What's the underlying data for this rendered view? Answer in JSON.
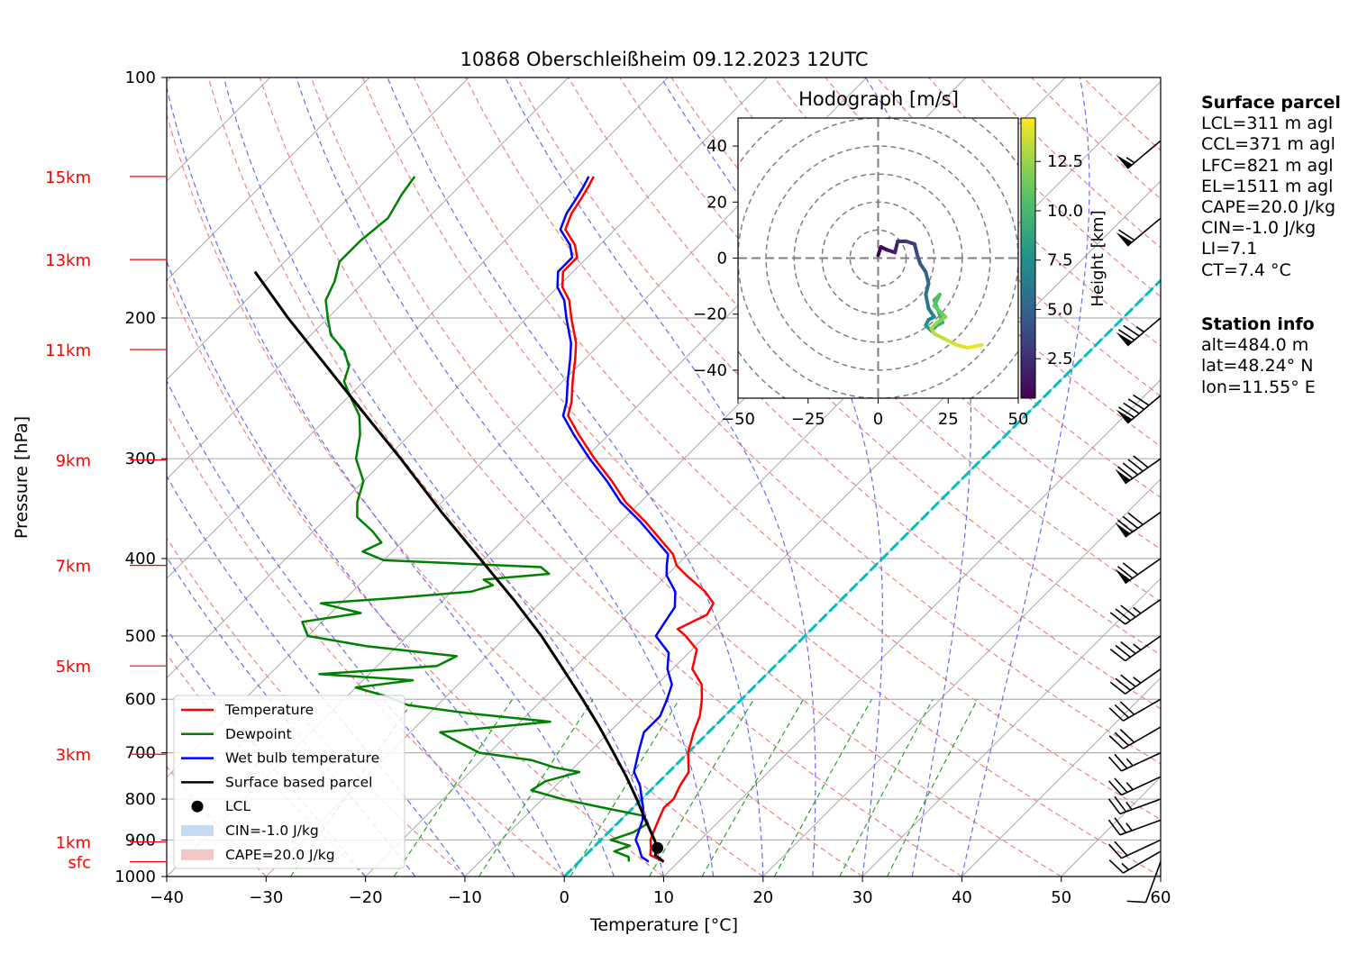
{
  "chart_data": {
    "type": "skew-t",
    "title": "10868 Oberschleißheim 09.12.2023 12UTC",
    "xlabel": "Temperature [°C]",
    "ylabel": "Pressure [hPa]",
    "xlim": [
      -40,
      60
    ],
    "ylim": [
      1000,
      100
    ],
    "y_scale": "log",
    "x_ticks": [
      "−40",
      "−30",
      "−20",
      "−10",
      "0",
      "10",
      "20",
      "30",
      "40",
      "50",
      "60"
    ],
    "y_ticks": [
      "100",
      "200",
      "300",
      "400",
      "500",
      "600",
      "700",
      "800",
      "900",
      "1000"
    ],
    "y_tick_values": [
      100,
      200,
      300,
      400,
      500,
      600,
      700,
      800,
      900,
      1000
    ],
    "height_labels": [
      {
        "label": "15km",
        "p": 133
      },
      {
        "label": "13km",
        "p": 169
      },
      {
        "label": "11km",
        "p": 219
      },
      {
        "label": "9km",
        "p": 301
      },
      {
        "label": "7km",
        "p": 408
      },
      {
        "label": "5km",
        "p": 545
      },
      {
        "label": "3km",
        "p": 703
      },
      {
        "label": "1km",
        "p": 905
      },
      {
        "label": "sfc",
        "p": 958
      }
    ],
    "grid": true,
    "legend_position": "lower-left",
    "legend": [
      {
        "label": "Temperature",
        "kind": "line",
        "color": "#ff0000"
      },
      {
        "label": "Dewpoint",
        "kind": "line",
        "color": "#008000"
      },
      {
        "label": "Wet bulb temperature",
        "kind": "line",
        "color": "#0000ff"
      },
      {
        "label": "Surface based parcel",
        "kind": "line",
        "color": "#000000"
      },
      {
        "label": "LCL",
        "kind": "marker",
        "color": "#000000"
      },
      {
        "label": "CIN=-1.0 J/kg",
        "kind": "patch",
        "color": "#c6dbef"
      },
      {
        "label": "CAPE=20.0 J/kg",
        "kind": "patch",
        "color": "#f4c7c7"
      }
    ],
    "series": [
      {
        "name": "Temperature",
        "color": "#ff0000",
        "points": [
          [
            958,
            8.5
          ],
          [
            940,
            6.5
          ],
          [
            920,
            5.8
          ],
          [
            900,
            5.0
          ],
          [
            880,
            4.5
          ],
          [
            850,
            3.8
          ],
          [
            820,
            3.1
          ],
          [
            800,
            3.2
          ],
          [
            770,
            2.5
          ],
          [
            740,
            2.0
          ],
          [
            700,
            0.0
          ],
          [
            660,
            -1.5
          ],
          [
            630,
            -2.5
          ],
          [
            600,
            -4.0
          ],
          [
            575,
            -5.5
          ],
          [
            550,
            -8.0
          ],
          [
            520,
            -9.5
          ],
          [
            500,
            -12.0
          ],
          [
            490,
            -13.5
          ],
          [
            470,
            -12.0
          ],
          [
            455,
            -12.5
          ],
          [
            440,
            -14.5
          ],
          [
            420,
            -18.0
          ],
          [
            408,
            -20.0
          ],
          [
            395,
            -21.5
          ],
          [
            380,
            -24.0
          ],
          [
            360,
            -27.5
          ],
          [
            340,
            -31.5
          ],
          [
            320,
            -35.0
          ],
          [
            300,
            -39.0
          ],
          [
            280,
            -43.0
          ],
          [
            265,
            -46.0
          ],
          [
            255,
            -47.0
          ],
          [
            240,
            -49.0
          ],
          [
            225,
            -51.0
          ],
          [
            215,
            -52.5
          ],
          [
            200,
            -55.5
          ],
          [
            190,
            -57.5
          ],
          [
            183,
            -59.5
          ],
          [
            175,
            -61.0
          ],
          [
            168,
            -61.0
          ],
          [
            162,
            -62.5
          ],
          [
            155,
            -65.0
          ],
          [
            148,
            -66.0
          ],
          [
            142,
            -66.5
          ],
          [
            137,
            -67.0
          ],
          [
            133,
            -67.5
          ]
        ]
      },
      {
        "name": "Dewpoint",
        "color": "#008000",
        "points": [
          [
            958,
            5.0
          ],
          [
            945,
            4.5
          ],
          [
            930,
            2.5
          ],
          [
            915,
            3.5
          ],
          [
            900,
            1.0
          ],
          [
            880,
            2.5
          ],
          [
            860,
            3.0
          ],
          [
            840,
            2.0
          ],
          [
            820,
            -3.0
          ],
          [
            800,
            -8.0
          ],
          [
            780,
            -12.0
          ],
          [
            760,
            -11.5
          ],
          [
            740,
            -9.0
          ],
          [
            730,
            -12.0
          ],
          [
            715,
            -15.0
          ],
          [
            700,
            -21.0
          ],
          [
            680,
            -24.0
          ],
          [
            660,
            -27.0
          ],
          [
            640,
            -17.0
          ],
          [
            625,
            -26.0
          ],
          [
            610,
            -33.0
          ],
          [
            595,
            -36.0
          ],
          [
            580,
            -40.0
          ],
          [
            568,
            -35.0
          ],
          [
            558,
            -45.0
          ],
          [
            545,
            -34.0
          ],
          [
            530,
            -33.0
          ],
          [
            515,
            -43.0
          ],
          [
            500,
            -50.0
          ],
          [
            480,
            -52.0
          ],
          [
            468,
            -47.0
          ],
          [
            455,
            -52.0
          ],
          [
            448,
            -45.0
          ],
          [
            440,
            -38.0
          ],
          [
            432,
            -36.5
          ],
          [
            425,
            -38.0
          ],
          [
            418,
            -32.0
          ],
          [
            410,
            -33.5
          ],
          [
            402,
            -50.0
          ],
          [
            392,
            -53.0
          ],
          [
            382,
            -52.0
          ],
          [
            370,
            -54.0
          ],
          [
            355,
            -57.0
          ],
          [
            340,
            -58.5
          ],
          [
            320,
            -60.0
          ],
          [
            300,
            -63.0
          ],
          [
            280,
            -65.0
          ],
          [
            265,
            -67.0
          ],
          [
            250,
            -70.0
          ],
          [
            240,
            -72.0
          ],
          [
            230,
            -73.0
          ],
          [
            220,
            -75.0
          ],
          [
            210,
            -78.0
          ],
          [
            200,
            -80.0
          ],
          [
            190,
            -82.0
          ],
          [
            180,
            -83.0
          ],
          [
            170,
            -84.5
          ],
          [
            160,
            -84.5
          ],
          [
            150,
            -84.0
          ],
          [
            140,
            -85.0
          ],
          [
            133,
            -85.5
          ]
        ]
      },
      {
        "name": "Wet bulb temperature",
        "color": "#0000ff",
        "points": [
          [
            958,
            7.0
          ],
          [
            945,
            5.8
          ],
          [
            920,
            4.6
          ],
          [
            900,
            3.5
          ],
          [
            880,
            3.0
          ],
          [
            850,
            2.2
          ],
          [
            820,
            1.0
          ],
          [
            800,
            0.0
          ],
          [
            770,
            -1.5
          ],
          [
            740,
            -3.5
          ],
          [
            700,
            -5.0
          ],
          [
            660,
            -6.5
          ],
          [
            630,
            -6.5
          ],
          [
            600,
            -7.5
          ],
          [
            575,
            -8.5
          ],
          [
            550,
            -10.5
          ],
          [
            525,
            -12.0
          ],
          [
            500,
            -15.0
          ],
          [
            480,
            -15.5
          ],
          [
            460,
            -16.0
          ],
          [
            440,
            -17.5
          ],
          [
            420,
            -20.0
          ],
          [
            408,
            -21.0
          ],
          [
            395,
            -22.0
          ],
          [
            380,
            -24.5
          ],
          [
            360,
            -28.0
          ],
          [
            340,
            -32.0
          ],
          [
            320,
            -35.5
          ],
          [
            300,
            -39.5
          ],
          [
            280,
            -43.5
          ],
          [
            265,
            -46.5
          ],
          [
            255,
            -47.5
          ],
          [
            240,
            -49.5
          ],
          [
            225,
            -51.5
          ],
          [
            215,
            -53.0
          ],
          [
            200,
            -56.0
          ],
          [
            190,
            -58.0
          ],
          [
            183,
            -60.0
          ],
          [
            175,
            -61.5
          ],
          [
            168,
            -61.5
          ],
          [
            162,
            -63.0
          ],
          [
            155,
            -65.5
          ],
          [
            148,
            -66.5
          ],
          [
            142,
            -67.0
          ],
          [
            137,
            -67.5
          ],
          [
            133,
            -68.0
          ]
        ]
      },
      {
        "name": "Surface based parcel",
        "color": "#000000",
        "points": [
          [
            958,
            8.5
          ],
          [
            940,
            7.0
          ],
          [
            921,
            6.5
          ],
          [
            900,
            5.4
          ],
          [
            850,
            2.5
          ],
          [
            800,
            -0.5
          ],
          [
            750,
            -3.8
          ],
          [
            700,
            -7.5
          ],
          [
            650,
            -11.5
          ],
          [
            600,
            -16.0
          ],
          [
            550,
            -21.0
          ],
          [
            500,
            -26.5
          ],
          [
            450,
            -33.0
          ],
          [
            400,
            -40.5
          ],
          [
            350,
            -49.0
          ],
          [
            300,
            -58.5
          ],
          [
            250,
            -70.0
          ],
          [
            200,
            -84.0
          ],
          [
            175,
            -92.0
          ]
        ]
      }
    ],
    "lcl": {
      "p": 921,
      "t": 6.5
    },
    "wind_barbs_kt": [
      {
        "p": 958,
        "speed": 10,
        "dir": 200
      },
      {
        "p": 930,
        "speed": 15,
        "dir": 240
      },
      {
        "p": 900,
        "speed": 20,
        "dir": 245
      },
      {
        "p": 850,
        "speed": 25,
        "dir": 250
      },
      {
        "p": 800,
        "speed": 25,
        "dir": 250
      },
      {
        "p": 750,
        "speed": 25,
        "dir": 245
      },
      {
        "p": 700,
        "speed": 25,
        "dir": 245
      },
      {
        "p": 650,
        "speed": 30,
        "dir": 240
      },
      {
        "p": 600,
        "speed": 30,
        "dir": 240
      },
      {
        "p": 550,
        "speed": 35,
        "dir": 235
      },
      {
        "p": 500,
        "speed": 35,
        "dir": 235
      },
      {
        "p": 450,
        "speed": 35,
        "dir": 235
      },
      {
        "p": 400,
        "speed": 70,
        "dir": 235
      },
      {
        "p": 350,
        "speed": 80,
        "dir": 235
      },
      {
        "p": 300,
        "speed": 90,
        "dir": 235
      },
      {
        "p": 250,
        "speed": 90,
        "dir": 230
      },
      {
        "p": 200,
        "speed": 75,
        "dir": 230
      },
      {
        "p": 150,
        "speed": 60,
        "dir": 230
      },
      {
        "p": 120,
        "speed": 55,
        "dir": 230
      }
    ]
  },
  "hodograph": {
    "title": "Hodograph [m/s]",
    "xlim": [
      -50,
      50
    ],
    "ylim": [
      -50,
      50
    ],
    "x_ticks": [
      "−50",
      "−25",
      "0",
      "25",
      "50"
    ],
    "y_ticks": [
      "40",
      "20",
      "0",
      "−20",
      "−40"
    ],
    "colorbar_label": "Height [km]",
    "colorbar_ticks": [
      "2.5",
      "5.0",
      "7.5",
      "10.0",
      "12.5"
    ],
    "colorbar_range": [
      0.5,
      14.7
    ],
    "trace": [
      [
        0,
        1,
        0.5
      ],
      [
        1,
        4,
        1.0
      ],
      [
        3,
        3,
        1.5
      ],
      [
        6,
        2,
        2.0
      ],
      [
        7,
        6,
        2.5
      ],
      [
        10,
        6,
        3.0
      ],
      [
        13,
        5,
        3.5
      ],
      [
        14,
        1,
        4.0
      ],
      [
        15,
        -2,
        4.5
      ],
      [
        17,
        -5,
        5.0
      ],
      [
        18,
        -9,
        5.5
      ],
      [
        17,
        -13,
        6.0
      ],
      [
        18,
        -18,
        6.5
      ],
      [
        20,
        -21,
        7.0
      ],
      [
        18,
        -22,
        7.5
      ],
      [
        17,
        -24,
        8.0
      ],
      [
        19,
        -26,
        8.5
      ],
      [
        21,
        -24,
        9.0
      ],
      [
        23,
        -23,
        9.5
      ],
      [
        20,
        -15,
        10.0
      ],
      [
        22,
        -13,
        10.5
      ],
      [
        20,
        -17,
        11.0
      ],
      [
        22,
        -19,
        11.5
      ],
      [
        24,
        -21,
        12.0
      ],
      [
        21,
        -23,
        12.5
      ],
      [
        19,
        -25,
        13.0
      ],
      [
        20,
        -27,
        13.3
      ],
      [
        24,
        -29,
        13.6
      ],
      [
        28,
        -31,
        14.0
      ],
      [
        32,
        -32,
        14.3
      ],
      [
        37,
        -31,
        14.7
      ]
    ]
  },
  "surface_parcel": {
    "heading": "Surface parcel",
    "lines": [
      "LCL=311 m agl",
      "CCL=371 m agl",
      "LFC=821 m agl",
      "EL=1511 m agl",
      "CAPE=20.0 J/kg",
      "CIN=-1.0 J/kg",
      "LI=7.1",
      "CT=7.4 °C"
    ]
  },
  "station_info": {
    "heading": "Station info",
    "lines": [
      "alt=484.0 m",
      "lat=48.24° N",
      "lon=11.55° E"
    ]
  }
}
